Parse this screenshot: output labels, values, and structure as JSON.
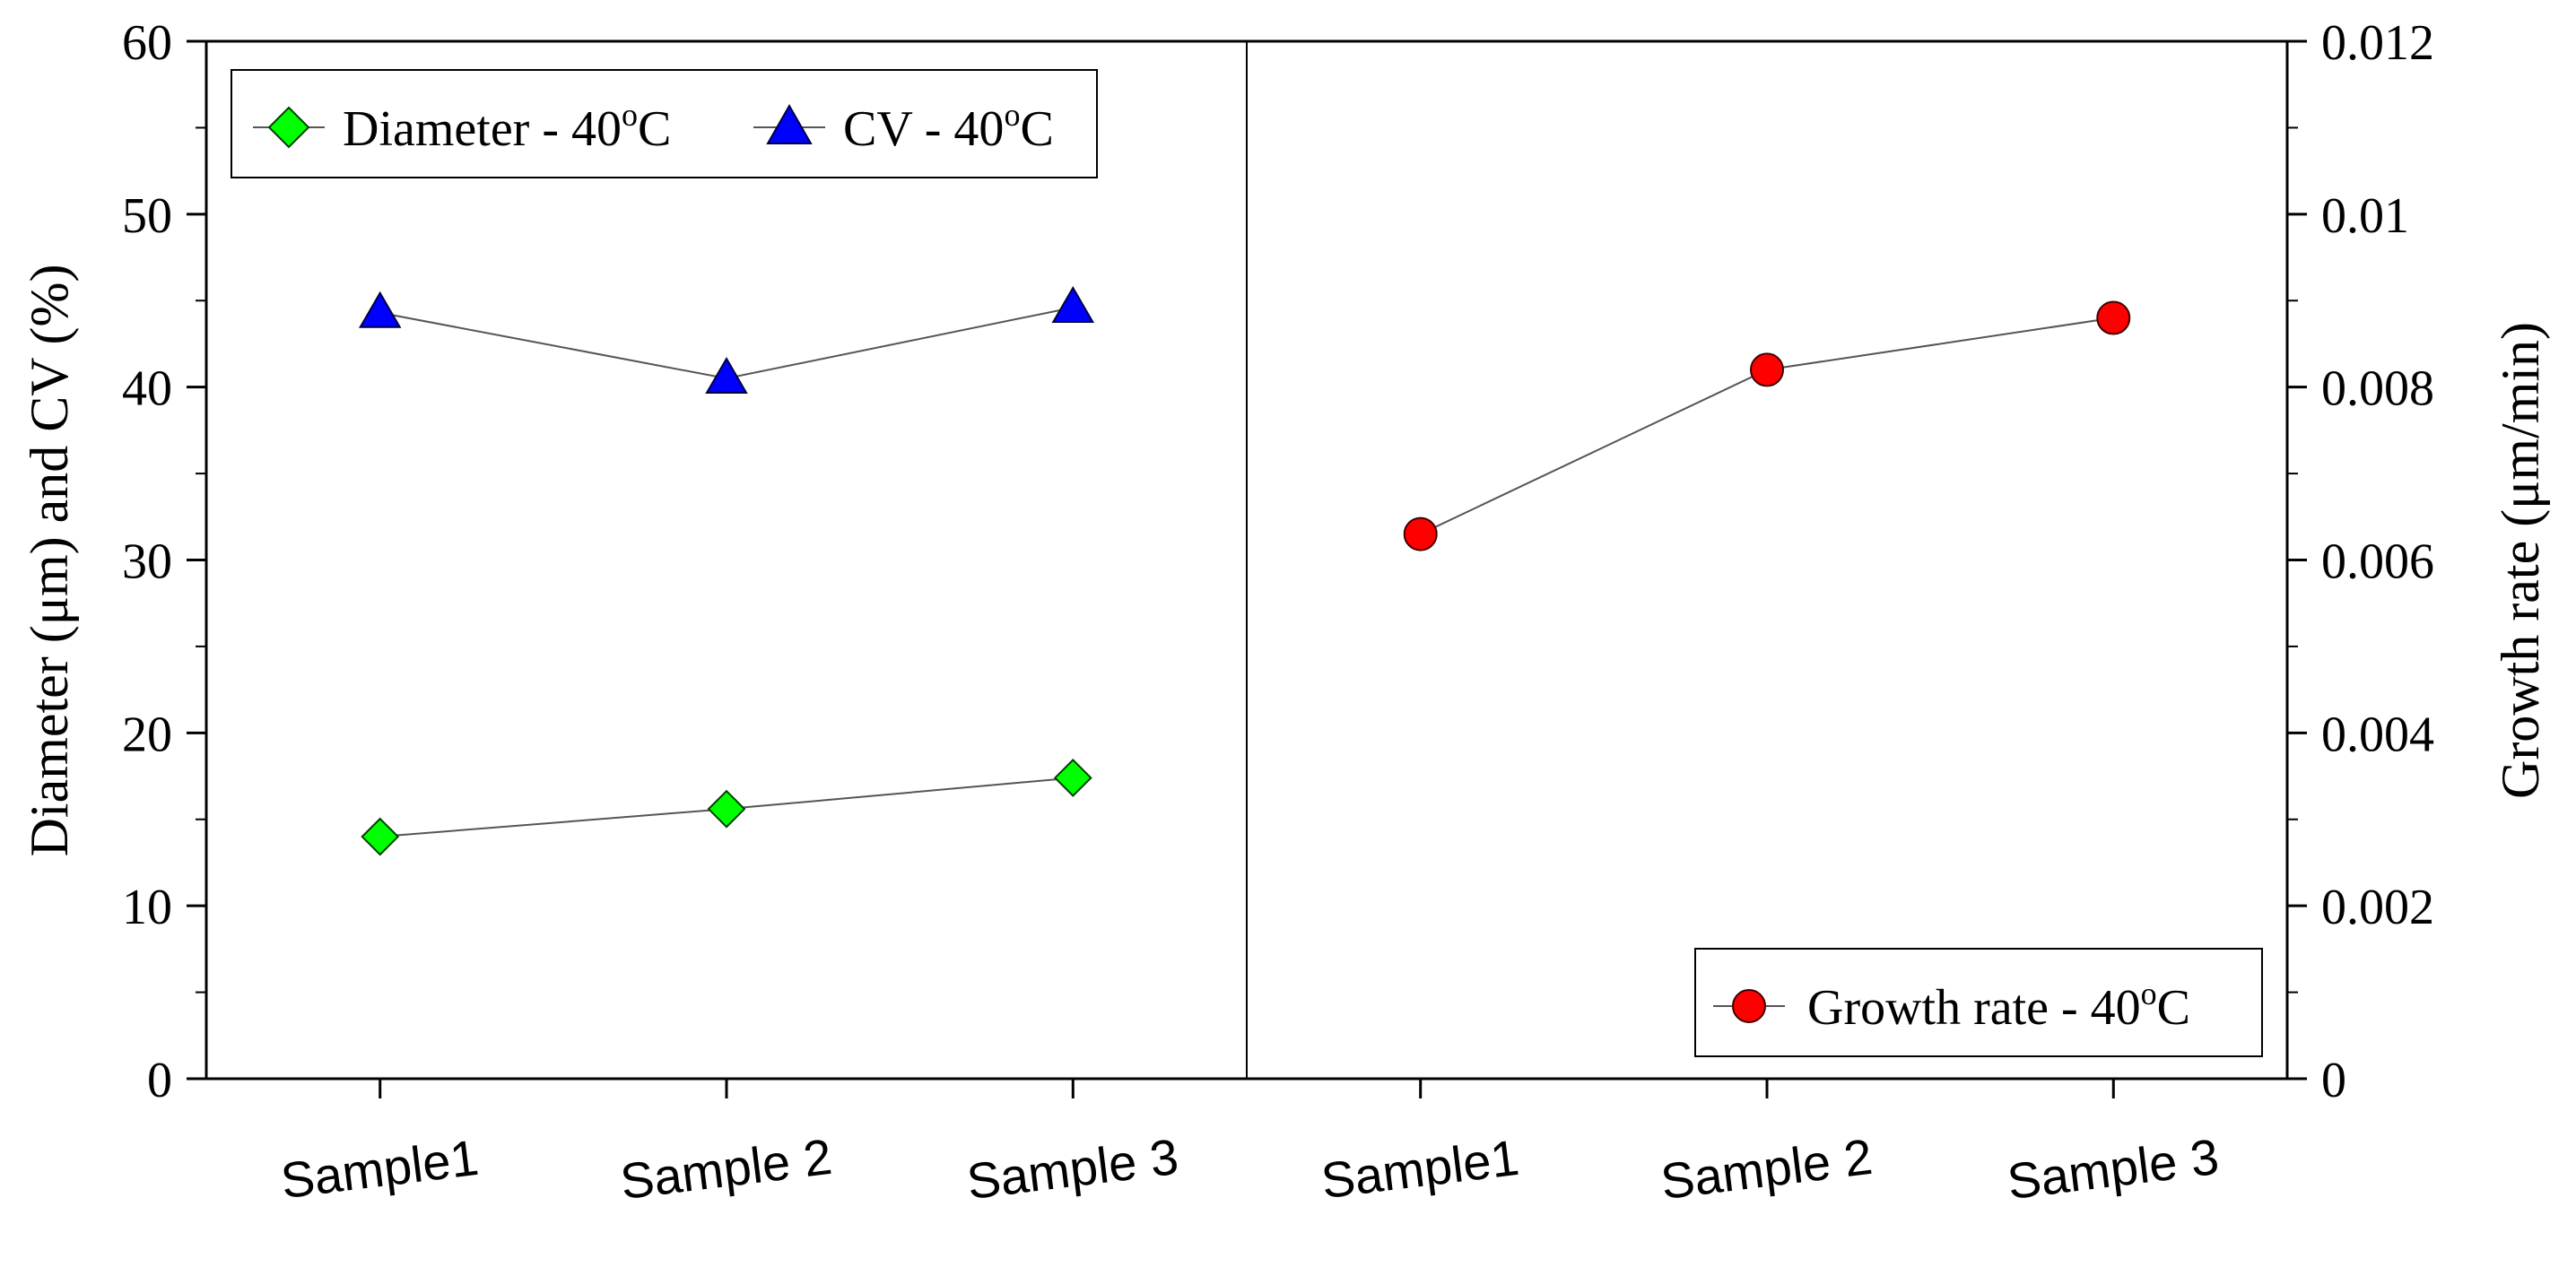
{
  "chart_data": {
    "type": "line",
    "panels": [
      {
        "categories": [
          "Sample1",
          "Sample 2",
          "Sample 3"
        ],
        "series": [
          {
            "name": "Diameter - 40",
            "superscript": "o",
            "unit_suffix": "C",
            "values": [
              14.0,
              15.6,
              17.4
            ],
            "marker": "diamond",
            "color": "#00ff00"
          },
          {
            "name": "CV - 40",
            "superscript": "o",
            "unit_suffix": "C",
            "values": [
              44.3,
              40.5,
              44.6
            ],
            "marker": "triangle",
            "color": "#0000ff"
          }
        ],
        "legend_position": "top-left"
      },
      {
        "categories": [
          "Sample1",
          "Sample 2",
          "Sample 3"
        ],
        "series": [
          {
            "name": "Growth rate - 40",
            "superscript": "o",
            "unit_suffix": "C",
            "values": [
              0.0063,
              0.0082,
              0.0088
            ],
            "marker": "circle",
            "color": "#ff0000"
          }
        ],
        "legend_position": "bottom-right"
      }
    ],
    "y_left": {
      "label": "Diameter (μm) and CV (%)",
      "range": [
        0,
        60
      ],
      "ticks": [
        "0",
        "10",
        "20",
        "30",
        "40",
        "50",
        "60"
      ]
    },
    "y_right": {
      "label": "Growth rate (μm/min)",
      "range": [
        0,
        0.012
      ],
      "ticks": [
        "0",
        "0.002",
        "0.004",
        "0.006",
        "0.008",
        "0.01",
        "0.012"
      ]
    },
    "grid": false,
    "line_color": "#555555"
  }
}
